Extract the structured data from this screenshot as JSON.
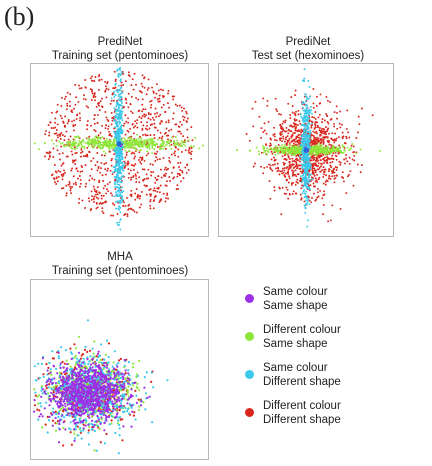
{
  "figure": {
    "panel_label": "(b)"
  },
  "colors": {
    "same_colour_same_shape": "#9b30e6",
    "different_colour_same_shape": "#8ee63a",
    "same_colour_different_shape": "#3cc8ea",
    "different_colour_different_shape": "#d9261c"
  },
  "legend": [
    {
      "line1": "Same colour",
      "line2": "Same shape",
      "color": "#9b30e6"
    },
    {
      "line1": "Different colour",
      "line2": "Same shape",
      "color": "#8ee63a"
    },
    {
      "line1": "Same colour",
      "line2": "Different shape",
      "color": "#3cc8ea"
    },
    {
      "line1": "Different colour",
      "line2": "Different shape",
      "color": "#d9261c"
    }
  ],
  "chart_data": [
    {
      "type": "scatter",
      "title_line1": "PrediNet",
      "title_line2": "Training set (pentominoes)",
      "xlim": [
        -1,
        1
      ],
      "ylim": [
        -1,
        1
      ],
      "grid": false,
      "series": [
        {
          "name": "Different colour Different shape",
          "color": "#d9261c",
          "distribution": "broad diffuse cloud",
          "approx_points": 900,
          "spread": [
            0.85,
            0.85
          ]
        },
        {
          "name": "Different colour Same shape",
          "color": "#8ee63a",
          "distribution": "horizontal band",
          "approx_points": 500,
          "spread": [
            0.75,
            0.07
          ]
        },
        {
          "name": "Same colour Different shape",
          "color": "#3cc8ea",
          "distribution": "vertical band",
          "approx_points": 500,
          "spread": [
            0.05,
            0.85
          ]
        },
        {
          "name": "Same colour Same shape",
          "color": "#9b30e6",
          "distribution": "tight central cluster",
          "approx_points": 20,
          "spread": [
            0.03,
            0.03
          ]
        }
      ]
    },
    {
      "type": "scatter",
      "title_line1": "PrediNet",
      "title_line2": "Test set (hexominoes)",
      "xlim": [
        -1,
        1
      ],
      "ylim": [
        -1,
        1
      ],
      "grid": false,
      "series": [
        {
          "name": "Different colour Different shape",
          "color": "#d9261c",
          "distribution": "dense central cloud",
          "approx_points": 1000,
          "spread": [
            0.45,
            0.5
          ]
        },
        {
          "name": "Different colour Same shape",
          "color": "#8ee63a",
          "distribution": "horizontal band",
          "approx_points": 500,
          "spread": [
            0.45,
            0.05
          ]
        },
        {
          "name": "Same colour Different shape",
          "color": "#3cc8ea",
          "distribution": "vertical band",
          "approx_points": 500,
          "spread": [
            0.05,
            0.6
          ]
        },
        {
          "name": "Same colour Same shape",
          "color": "#9b30e6",
          "distribution": "tight central cluster",
          "approx_points": 20,
          "spread": [
            0.03,
            0.03
          ]
        }
      ]
    },
    {
      "type": "scatter",
      "title_line1": "MHA",
      "title_line2": "Training set (pentominoes)",
      "xlim": [
        -1,
        1
      ],
      "ylim": [
        -1,
        1
      ],
      "grid": false,
      "series": [
        {
          "name": "Different colour Different shape",
          "color": "#d9261c",
          "distribution": "mixed cloud, lower-left",
          "approx_points": 400,
          "spread": [
            0.45,
            0.35
          ]
        },
        {
          "name": "Different colour Same shape",
          "color": "#8ee63a",
          "distribution": "mixed cloud, lower-left",
          "approx_points": 400,
          "spread": [
            0.45,
            0.35
          ]
        },
        {
          "name": "Same colour Different shape",
          "color": "#3cc8ea",
          "distribution": "mixed cloud, lower-left",
          "approx_points": 600,
          "spread": [
            0.5,
            0.4
          ]
        },
        {
          "name": "Same colour Same shape",
          "color": "#9b30e6",
          "distribution": "mixed cloud, lower-left",
          "approx_points": 900,
          "spread": [
            0.4,
            0.3
          ]
        }
      ]
    }
  ]
}
